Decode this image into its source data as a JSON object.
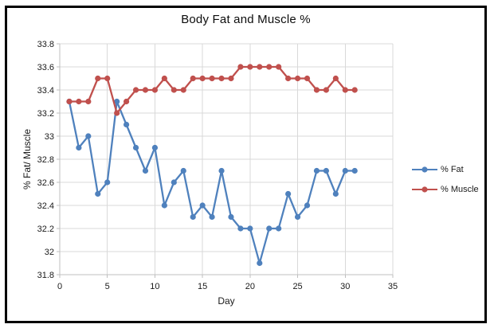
{
  "chart_data": {
    "type": "line",
    "title": "Body Fat and Muscle %",
    "xlabel": "Day",
    "ylabel": "% Fat/ Muscle",
    "xlim": [
      0,
      35
    ],
    "ylim": [
      31.8,
      33.8
    ],
    "x_ticks": [
      0,
      5,
      10,
      15,
      20,
      25,
      30,
      35
    ],
    "y_ticks": [
      31.8,
      32,
      32.2,
      32.4,
      32.6,
      32.8,
      33,
      33.2,
      33.4,
      33.6,
      33.8
    ],
    "y_tick_labels": [
      "31.8",
      "32",
      "32.2",
      "32.4",
      "32.6",
      "32.8",
      "33",
      "33.2",
      "33.4",
      "33.6",
      "33.8"
    ],
    "grid": true,
    "legend_position": "right",
    "x": [
      1,
      2,
      3,
      4,
      5,
      6,
      7,
      8,
      9,
      10,
      11,
      12,
      13,
      14,
      15,
      16,
      17,
      18,
      19,
      20,
      21,
      22,
      23,
      24,
      25,
      26,
      27,
      28,
      29,
      30,
      31
    ],
    "series": [
      {
        "name": "% Fat",
        "color": "#4F81BD",
        "values": [
          33.3,
          32.9,
          33.0,
          32.5,
          32.6,
          33.3,
          33.1,
          32.9,
          32.7,
          32.9,
          32.4,
          32.6,
          32.7,
          32.3,
          32.4,
          32.3,
          32.7,
          32.3,
          32.2,
          32.2,
          31.9,
          32.2,
          32.2,
          32.5,
          32.3,
          32.4,
          32.7,
          32.7,
          32.5,
          32.7,
          32.7
        ]
      },
      {
        "name": "% Muscle",
        "color": "#C0504D",
        "values": [
          33.3,
          33.3,
          33.3,
          33.5,
          33.5,
          33.2,
          33.3,
          33.4,
          33.4,
          33.4,
          33.5,
          33.4,
          33.4,
          33.5,
          33.5,
          33.5,
          33.5,
          33.5,
          33.6,
          33.6,
          33.6,
          33.6,
          33.6,
          33.5,
          33.5,
          33.5,
          33.4,
          33.4,
          33.5,
          33.4,
          33.4
        ]
      }
    ],
    "colors": {
      "grid": "#D9D9D9",
      "axis": "#BFBFBF",
      "frame_border": "#000000",
      "text": "#1A1A1A"
    }
  }
}
